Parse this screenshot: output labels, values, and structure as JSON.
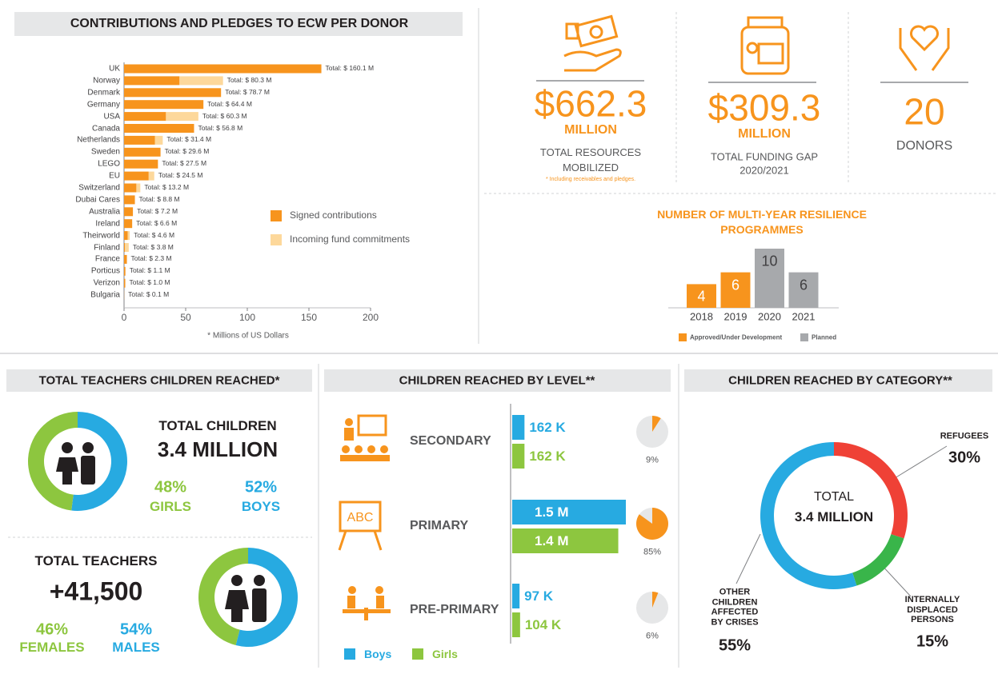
{
  "section_title": "TOTAL TEACHERS CHILDREN REACHED*",
  "kpis": [
    {
      "value_label": "$662.3",
      "unit": "MILLION",
      "label": "TOTAL RESOURCES MOBILIZED",
      "note": "* Including receivables and pledges."
    },
    {
      "value_label": "$309.3",
      "unit": "MILLION",
      "label": "TOTAL FUNDING GAP",
      "sub": "2020/2021"
    },
    {
      "value_label": "20",
      "label": "DONORS"
    }
  ],
  "chart_data": [
    {
      "type": "bar",
      "orientation": "horizontal",
      "stacked": true,
      "title": "CONTRIBUTIONS AND PLEDGES TO ECW PER DONOR",
      "categories": [
        "UK",
        "Norway",
        "Denmark",
        "Germany",
        "USA",
        "Canada",
        "Netherlands",
        "Sweden",
        "LEGO",
        "EU",
        "Switzerland",
        "Dubai Cares",
        "Australia",
        "Ireland",
        "Theirworld",
        "Finland",
        "France",
        "Porticus",
        "Verizon",
        "Bulgaria"
      ],
      "series": [
        {
          "name": "Signed contributions",
          "color": "#f7941d",
          "values": [
            160.1,
            45,
            78.7,
            64.4,
            34,
            56.8,
            25,
            29.6,
            27.5,
            20,
            10,
            8.8,
            7.2,
            6.6,
            3,
            0.8,
            2.3,
            1.1,
            1.0,
            0.1
          ]
        },
        {
          "name": "Incoming fund commitments",
          "color": "#fdd89b",
          "values": [
            0,
            35.3,
            0,
            0,
            26.3,
            0,
            6.4,
            0,
            0,
            4.5,
            3.2,
            0,
            0,
            0,
            1.6,
            3.0,
            0,
            0,
            0,
            0
          ]
        }
      ],
      "total_labels": [
        "Total: $ 160.1 M",
        "Total: $ 80.3 M",
        "Total: $ 78.7 M",
        "Total: $ 64.4 M",
        "Total: $ 60.3 M",
        "Total: $ 56.8 M",
        "Total: $ 31.4 M",
        "Total: $ 29.6 M",
        "Total: $ 27.5 M",
        "Total: $ 24.5 M",
        "Total: $ 13.2 M",
        "Total: $ 8.8 M",
        "Total: $ 7.2 M",
        "Total: $ 6.6 M",
        "Total: $ 4.6 M",
        "Total: $ 3.8 M",
        "Total: $ 2.3 M",
        "Total: $ 1.1 M",
        "Total: $ 1.0 M",
        "Total: $ 0.1 M"
      ],
      "xlabel": "* Millions of US Dollars",
      "xlim": [
        0,
        200
      ],
      "xticks": [
        0,
        50,
        100,
        150,
        200
      ]
    },
    {
      "type": "bar",
      "orientation": "vertical",
      "title": "NUMBER OF MULTI-YEAR RESILIENCE PROGRAMMES",
      "categories": [
        "2018",
        "2019",
        "2020",
        "2021"
      ],
      "values": [
        4,
        6,
        10,
        6
      ],
      "colors": [
        "#f7941d",
        "#f7941d",
        "#a7a9ac",
        "#a7a9ac"
      ],
      "legend": [
        {
          "name": "Approved/Under Development",
          "color": "#f7941d"
        },
        {
          "name": "Planned",
          "color": "#a7a9ac"
        }
      ]
    },
    {
      "type": "donut",
      "title": "TOTAL CHILDREN",
      "subtitle": "3.4 MILLION",
      "categories": [
        "GIRLS",
        "BOYS"
      ],
      "values": [
        48,
        52
      ],
      "value_labels": [
        "48%",
        "52%"
      ],
      "colors": [
        "#8dc63f",
        "#27aae1"
      ]
    },
    {
      "type": "donut",
      "title": "TOTAL TEACHERS",
      "subtitle": "+41,500",
      "categories": [
        "FEMALES",
        "MALES"
      ],
      "values": [
        46,
        54
      ],
      "value_labels": [
        "46%",
        "54%"
      ],
      "colors": [
        "#8dc63f",
        "#27aae1"
      ]
    },
    {
      "type": "bar",
      "orientation": "horizontal",
      "stacked": false,
      "title": "CHILDREN REACHED BY LEVEL**",
      "categories": [
        "SECONDARY",
        "PRIMARY",
        "PRE-PRIMARY"
      ],
      "series": [
        {
          "name": "Boys",
          "color": "#27aae1",
          "values": [
            162000,
            1500000,
            97000
          ],
          "value_labels": [
            "162 K",
            "1.5 M",
            "97 K"
          ]
        },
        {
          "name": "Girls",
          "color": "#8dc63f",
          "values": [
            162000,
            1400000,
            104000
          ],
          "value_labels": [
            "162 K",
            "1.4 M",
            "104 K"
          ]
        }
      ]
    },
    {
      "type": "pie",
      "values": [
        9,
        85,
        6
      ],
      "value_labels": [
        "9%",
        "85%",
        "6%"
      ],
      "color": "#f7941d"
    },
    {
      "type": "donut",
      "title": "CHILDREN REACHED BY CATEGORY**",
      "center_labels": [
        "TOTAL",
        "3.4 MILLION"
      ],
      "categories": [
        "REFUGEES",
        "INTERNALLY DISPLACED PERSONS",
        "OTHER CHILDREN AFFECTED BY CRISES"
      ],
      "values": [
        30,
        15,
        55
      ],
      "value_labels": [
        "30%",
        "15%",
        "55%"
      ],
      "colors": [
        "#ef4136",
        "#39b54a",
        "#27aae1"
      ]
    }
  ]
}
